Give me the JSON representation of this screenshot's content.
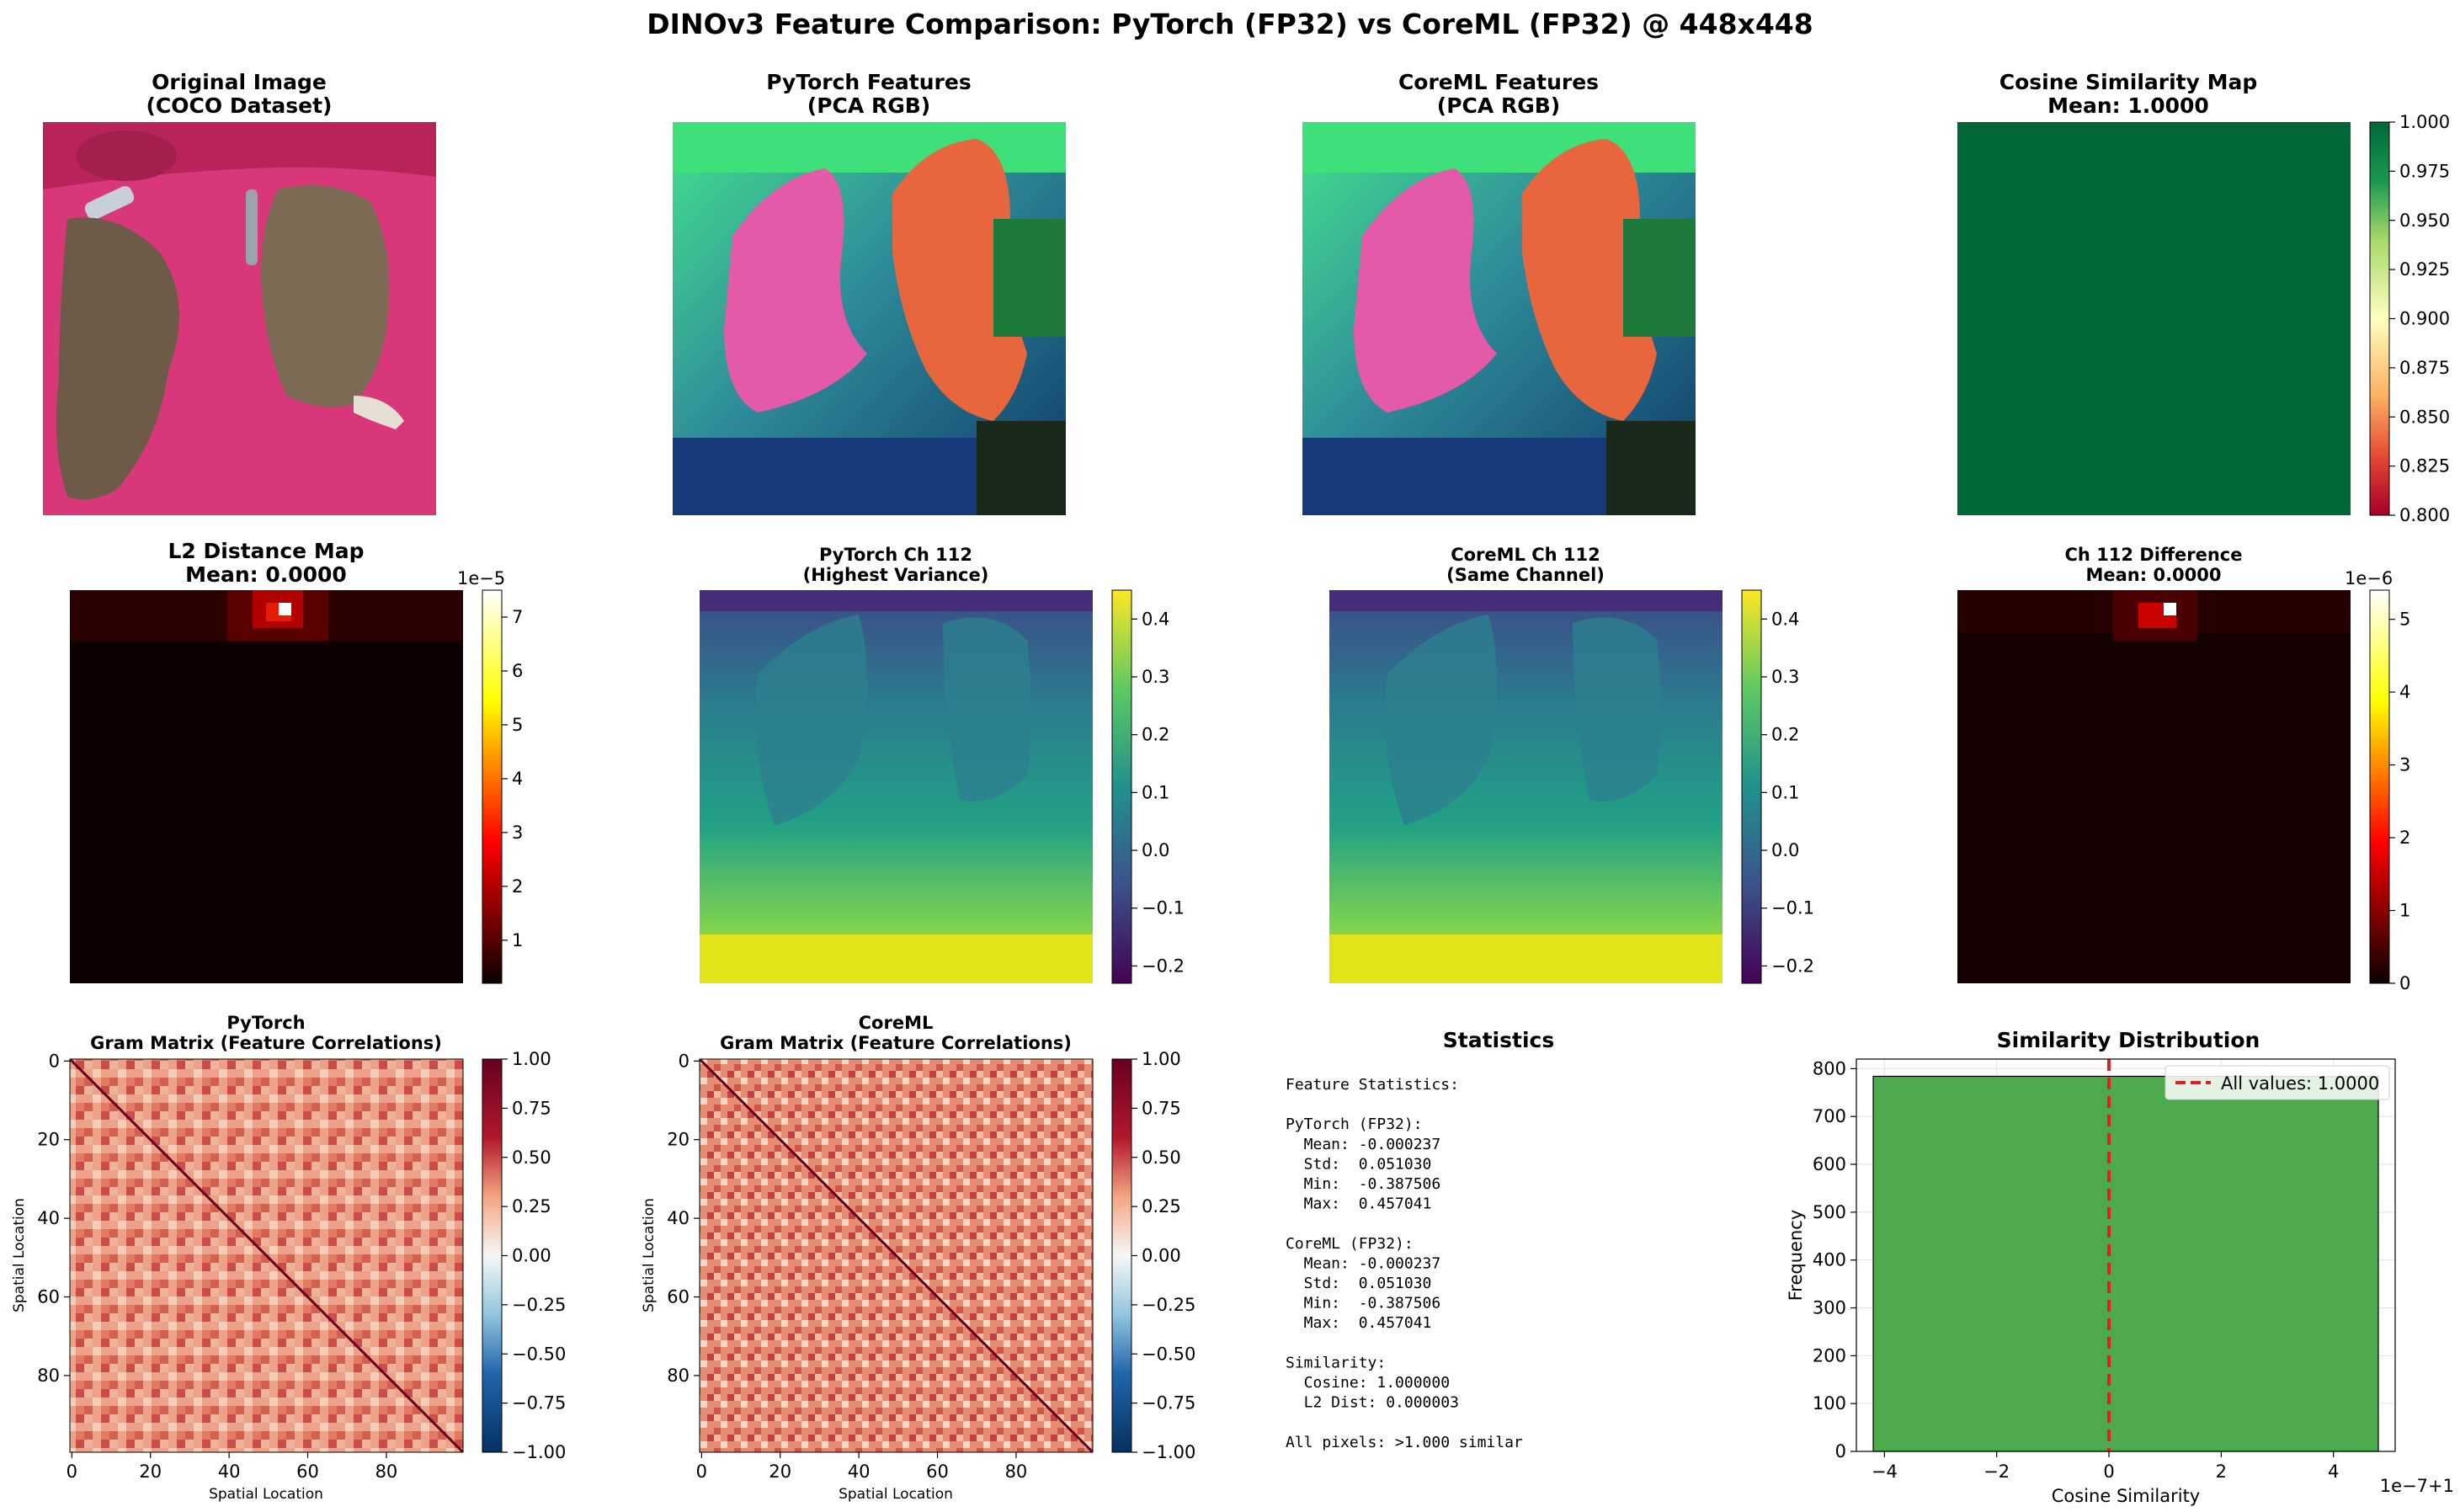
{
  "figure": {
    "suptitle": "DINOv3 Feature Comparison: PyTorch (FP32) vs CoreML (FP32) @ 448x448"
  },
  "panels": {
    "original": {
      "title_1": "Original Image",
      "title_2": "(COCO Dataset)"
    },
    "pytorch_pca": {
      "title_1": "PyTorch Features",
      "title_2": "(PCA RGB)"
    },
    "coreml_pca": {
      "title_1": "CoreML Features",
      "title_2": "(PCA RGB)"
    },
    "cosine_map": {
      "title_1": "Cosine Similarity Map",
      "title_2": "Mean: 1.0000",
      "colorbar_ticks": [
        "0.800",
        "0.825",
        "0.850",
        "0.875",
        "0.900",
        "0.925",
        "0.950",
        "0.975",
        "1.000"
      ]
    },
    "l2_map": {
      "title_1": "L2 Distance Map",
      "title_2": "Mean: 0.0000",
      "colorbar_ticks": [
        "1",
        "2",
        "3",
        "4",
        "5",
        "6",
        "7"
      ],
      "colorbar_exponent": "1e−5"
    },
    "pytorch_ch": {
      "title_1": "PyTorch Ch 112",
      "title_2": "(Highest Variance)",
      "colorbar_ticks": [
        "−0.2",
        "−0.1",
        "0.0",
        "0.1",
        "0.2",
        "0.3",
        "0.4"
      ]
    },
    "coreml_ch": {
      "title_1": "CoreML Ch 112",
      "title_2": "(Same Channel)",
      "colorbar_ticks": [
        "−0.2",
        "−0.1",
        "0.0",
        "0.1",
        "0.2",
        "0.3",
        "0.4"
      ]
    },
    "ch_diff": {
      "title_1": "Ch 112 Difference",
      "title_2": "Mean: 0.0000",
      "colorbar_ticks": [
        "0",
        "1",
        "2",
        "3",
        "4",
        "5"
      ],
      "colorbar_exponent": "1e−6"
    },
    "gram_pytorch": {
      "title_1": "PyTorch",
      "title_2": "Gram Matrix (Feature Correlations)",
      "xlabel": "Spatial Location",
      "ylabel": "Spatial Location",
      "ticks": [
        "0",
        "20",
        "40",
        "60",
        "80"
      ],
      "colorbar_ticks": [
        "1.00",
        "0.75",
        "0.50",
        "0.25",
        "0.00",
        "−0.25",
        "−0.50",
        "−0.75",
        "−1.00"
      ]
    },
    "gram_coreml": {
      "title_1": "CoreML",
      "title_2": "Gram Matrix (Feature Correlations)",
      "xlabel": "Spatial Location",
      "ylabel": "Spatial Location",
      "ticks": [
        "0",
        "20",
        "40",
        "60",
        "80"
      ],
      "colorbar_ticks": [
        "1.00",
        "0.75",
        "0.50",
        "0.25",
        "0.00",
        "−0.25",
        "−0.50",
        "−0.75",
        "−1.00"
      ]
    },
    "stats": {
      "title": "Statistics",
      "lines": [
        "Feature Statistics:",
        "",
        "PyTorch (FP32):",
        "  Mean: -0.000237",
        "  Std:  0.051030",
        "  Min:  -0.387506",
        "  Max:  0.457041",
        "",
        "CoreML (FP32):",
        "  Mean: -0.000237",
        "  Std:  0.051030",
        "  Min:  -0.387506",
        "  Max:  0.457041",
        "",
        "Similarity:",
        "  Cosine: 1.000000",
        "  L2 Dist: 0.000003",
        "",
        "All pixels: >1.000 similar"
      ]
    },
    "hist": {
      "title": "Similarity Distribution",
      "xlabel": "Cosine Similarity",
      "ylabel": "Frequency",
      "offset_text": "1e−7+1",
      "legend": "All values: 1.0000"
    }
  },
  "colors": {
    "hist_bar": "#4caa4c",
    "mean_line": "#e02020",
    "cosine_fill": "#006837"
  },
  "chart_data": [
    {
      "type": "heatmap",
      "name": "cosine_similarity_map",
      "title": "Cosine Similarity Map",
      "mean": 1.0,
      "clim": [
        0.8,
        1.0
      ],
      "colormap": "RdYlGn",
      "uniform_value": 1.0
    },
    {
      "type": "heatmap",
      "name": "l2_distance_map",
      "title": "L2 Distance Map",
      "mean": 0.0,
      "clim": [
        0,
        7.5e-05
      ],
      "colormap": "hot",
      "hotspots": [
        {
          "row": 0,
          "col": 11,
          "value": 7.5e-05
        }
      ]
    },
    {
      "type": "heatmap",
      "name": "pytorch_ch112",
      "title": "PyTorch Ch 112",
      "clim": [
        -0.23,
        0.45
      ],
      "colormap": "viridis"
    },
    {
      "type": "heatmap",
      "name": "coreml_ch112",
      "title": "CoreML Ch 112",
      "clim": [
        -0.23,
        0.45
      ],
      "colormap": "viridis"
    },
    {
      "type": "heatmap",
      "name": "ch112_difference",
      "title": "Ch 112 Difference",
      "mean": 0.0,
      "clim": [
        0,
        5.4e-06
      ],
      "colormap": "hot"
    },
    {
      "type": "heatmap",
      "name": "gram_pytorch",
      "title": "PyTorch Gram Matrix",
      "clim": [
        -1,
        1
      ],
      "colormap": "RdBu_r",
      "size": 100,
      "xlim": [
        0,
        99
      ],
      "ylim": [
        99,
        0
      ]
    },
    {
      "type": "heatmap",
      "name": "gram_coreml",
      "title": "CoreML Gram Matrix",
      "clim": [
        -1,
        1
      ],
      "colormap": "RdBu_r",
      "size": 100,
      "xlim": [
        0,
        99
      ],
      "ylim": [
        99,
        0
      ]
    },
    {
      "type": "bar",
      "name": "similarity_distribution",
      "title": "Similarity Distribution",
      "x_offset": 1,
      "x_scale": 1e-07,
      "bins": [
        {
          "from": -4.2,
          "to": 4.8,
          "count": 784
        }
      ],
      "xlim": [
        -4.5,
        5.1
      ],
      "ylim": [
        0,
        820
      ],
      "xticks": [
        -4,
        -2,
        0,
        2,
        4
      ],
      "yticks": [
        0,
        100,
        200,
        300,
        400,
        500,
        600,
        700,
        800
      ],
      "mean_line_x": 0,
      "legend_position": "top-right",
      "grid": true
    }
  ]
}
